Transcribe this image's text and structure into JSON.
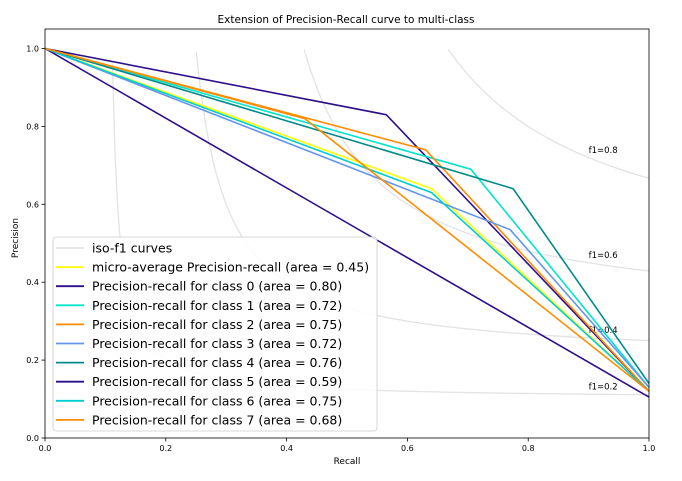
{
  "chart_data": {
    "type": "line",
    "title": "Extension of Precision-Recall curve to multi-class",
    "xlabel": "Recall",
    "ylabel": "Precision",
    "xlim": [
      0.0,
      1.0
    ],
    "ylim": [
      0.0,
      1.05
    ],
    "xticks": [
      "0.0",
      "0.2",
      "0.4",
      "0.6",
      "0.8",
      "1.0"
    ],
    "yticks": [
      "0.0",
      "0.2",
      "0.4",
      "0.6",
      "0.8",
      "1.0"
    ],
    "grid": false,
    "legend_location": "lower-left",
    "iso_f1": {
      "legend_label": "iso-f1 curves",
      "color": "#e3e3e3",
      "values": [
        0.2,
        0.4,
        0.6,
        0.8
      ],
      "labels": [
        "f1=0.2",
        "f1=0.4",
        "f1=0.6",
        "f1=0.8"
      ]
    },
    "series": [
      {
        "name": "micro-average Precision-recall (area = 0.45)",
        "color": "#ffff00",
        "x": [
          0.0,
          0.64,
          1.0
        ],
        "y": [
          1.0,
          0.64,
          0.12
        ]
      },
      {
        "name": "Precision-recall for class 0 (area = 0.80)",
        "color": "#2e0f8a",
        "x": [
          0.0,
          0.565,
          1.0
        ],
        "y": [
          1.0,
          0.83,
          0.12
        ]
      },
      {
        "name": "Precision-recall for class 1 (area = 0.72)",
        "color": "#00e5cc",
        "x": [
          0.0,
          0.705,
          1.0
        ],
        "y": [
          1.0,
          0.69,
          0.13
        ]
      },
      {
        "name": "Precision-recall for class 2 (area = 0.75)",
        "color": "#ff8c00",
        "x": [
          0.0,
          0.63,
          1.0
        ],
        "y": [
          1.0,
          0.74,
          0.12
        ]
      },
      {
        "name": "Precision-recall for class 3 (area = 0.72)",
        "color": "#6495ed",
        "x": [
          0.0,
          0.77,
          1.0
        ],
        "y": [
          1.0,
          0.535,
          0.13
        ]
      },
      {
        "name": "Precision-recall for class 4 (area = 0.76)",
        "color": "#008b8b",
        "x": [
          0.0,
          0.775,
          1.0
        ],
        "y": [
          1.0,
          0.64,
          0.14
        ]
      },
      {
        "name": "Precision-recall for class 5 (area = 0.59)",
        "color": "#2e0f8a",
        "x": [
          0.0,
          1.0
        ],
        "y": [
          1.0,
          0.105
        ]
      },
      {
        "name": "Precision-recall for class 6 (area = 0.75)",
        "color": "#00ced1",
        "x": [
          0.0,
          0.64,
          1.0
        ],
        "y": [
          1.0,
          0.63,
          0.12
        ]
      },
      {
        "name": "Precision-recall for class 7 (area = 0.68)",
        "color": "#ff8c00",
        "x": [
          0.0,
          0.43,
          1.0
        ],
        "y": [
          1.0,
          0.82,
          0.12
        ]
      }
    ]
  }
}
